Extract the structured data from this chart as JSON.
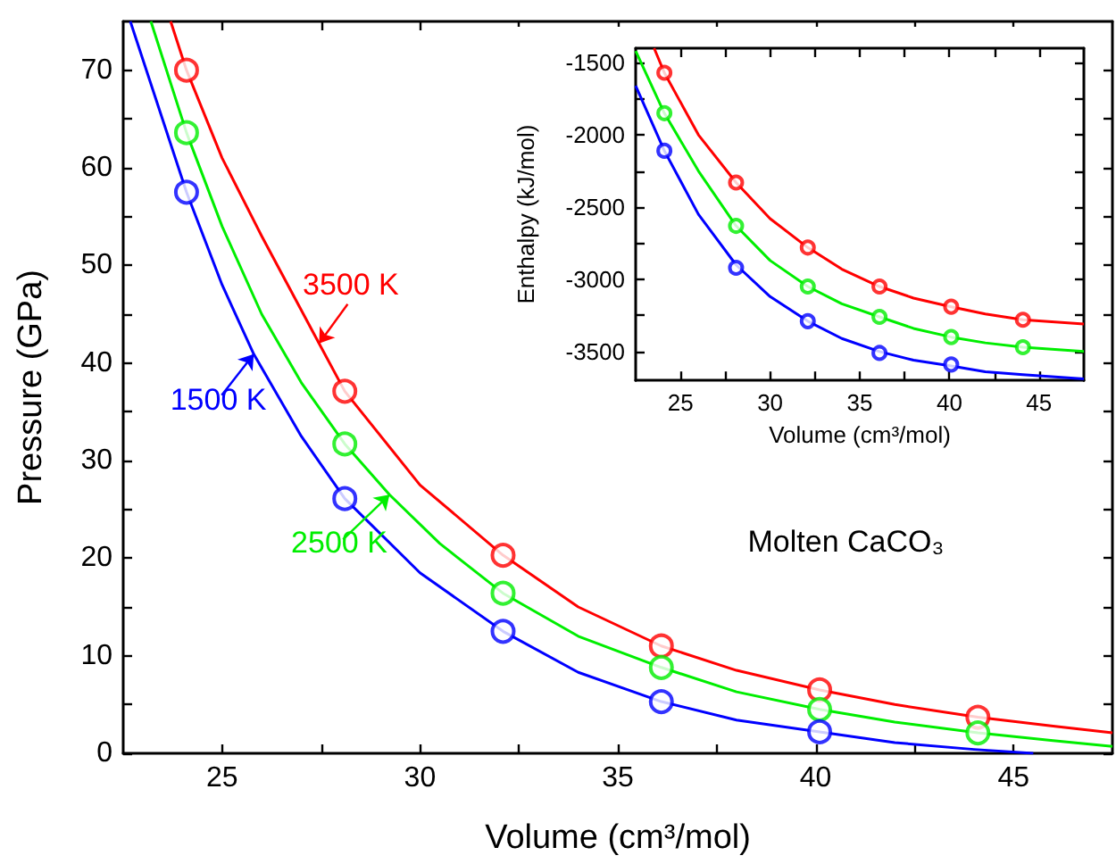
{
  "chart_data": [
    {
      "type": "scatter",
      "xlabel": "Volume (cm³/mol)",
      "ylabel": "Pressure (GPa)",
      "xlim": [
        22.5,
        47.5
      ],
      "ylim": [
        0,
        75
      ],
      "xticks": [
        25,
        {
          "value": 27.5,
          "label": null
        },
        30,
        {
          "value": 32.5,
          "label": null
        },
        35,
        {
          "value": 37.5,
          "label": null
        },
        40,
        {
          "value": 42.5,
          "label": null
        },
        45
      ],
      "yticks": [
        0,
        {
          "value": 5,
          "label": null
        },
        10,
        {
          "value": 15,
          "label": null
        },
        20,
        {
          "value": 25,
          "label": null
        },
        30,
        {
          "value": 35,
          "label": null
        },
        40,
        {
          "value": 45,
          "label": null
        },
        50,
        {
          "value": 55,
          "label": null
        },
        60,
        {
          "value": 65,
          "label": null
        },
        70
      ],
      "marker": "circle",
      "grid": false,
      "series": [
        {
          "color": "#ff0000",
          "x": [
            24.1,
            28.1,
            32.1,
            36.1,
            40.1,
            44.1
          ],
          "values": [
            70,
            37.1,
            20.3,
            11.0,
            6.5,
            3.7
          ]
        },
        {
          "color": "#00ee00",
          "x": [
            24.1,
            28.1,
            32.1,
            36.1,
            40.1,
            44.1
          ],
          "values": [
            63.6,
            31.7,
            16.4,
            8.8,
            4.5,
            2.1
          ]
        },
        {
          "color": "#0000ff",
          "x": [
            24.1,
            28.1,
            32.1,
            36.1,
            40.1
          ],
          "values": [
            57.5,
            26.1,
            12.5,
            5.3,
            2.2
          ]
        },
        {
          "type": "line",
          "marker": "none",
          "color": "#ff0000",
          "x": [
            23.7,
            24.1,
            25,
            26,
            27.45,
            28.1,
            30,
            32.1,
            34,
            36.1,
            38,
            40.1,
            42,
            44.1,
            46,
            47.5
          ],
          "values": [
            75,
            70,
            61,
            53,
            42,
            37.1,
            27.5,
            20.3,
            15,
            11,
            8.5,
            6.5,
            5,
            3.7,
            2.8,
            2.1
          ]
        },
        {
          "type": "line",
          "marker": "none",
          "color": "#00ee00",
          "x": [
            23.2,
            24.1,
            25,
            26,
            27,
            28.1,
            29.23,
            30.5,
            32.1,
            34,
            36.1,
            38,
            40.1,
            42,
            44.1,
            46,
            47.5
          ],
          "values": [
            75,
            63.6,
            54,
            45,
            38,
            31.7,
            26.5,
            21.5,
            16.4,
            12,
            8.8,
            6.3,
            4.5,
            3.2,
            2.1,
            1.3,
            0.7
          ]
        },
        {
          "type": "line",
          "marker": "none",
          "color": "#0000ff",
          "x": [
            22.68,
            24.1,
            25,
            25.8,
            27,
            28.1,
            30,
            32.1,
            34,
            36.1,
            38,
            40.1,
            42,
            44,
            45.5
          ],
          "values": [
            75,
            57.5,
            48,
            40.9,
            32.5,
            26.1,
            18.5,
            12.5,
            8.3,
            5.3,
            3.4,
            2.2,
            1.1,
            0.4,
            0
          ]
        }
      ],
      "annotations": [
        {
          "text": "3500 K",
          "x": 27.45,
          "y": 42
        },
        {
          "text": "2500 K",
          "x": 29.23,
          "y": 26.5
        },
        {
          "text": "1500 K",
          "x": 25.8,
          "y": 40.9
        },
        "Molten CaCO₃"
      ]
    },
    {
      "type": "scatter",
      "xlabel": "Volume (cm³/mol)",
      "ylabel": "Enthalpy (kJ/mol)",
      "xlim": [
        22.5,
        47.5
      ],
      "ylim": [
        -3700,
        -1400
      ],
      "xticks": [
        25,
        {
          "value": 27.5,
          "label": null
        },
        30,
        {
          "value": 32.5,
          "label": null
        },
        35,
        {
          "value": 37.5,
          "label": null
        },
        40,
        {
          "value": 42.5,
          "label": null
        },
        45
      ],
      "yticks": [
        -3500,
        {
          "value": -3250,
          "label": null
        },
        -3000,
        {
          "value": -2750,
          "label": null
        },
        -2500,
        {
          "value": -2250,
          "label": null
        },
        -2000,
        {
          "value": -1750,
          "label": null
        },
        -1500
      ],
      "marker": "circle",
      "grid": false,
      "series": [
        {
          "color": "#ff0000",
          "x": [
            24.1,
            28.1,
            32.1,
            36.1,
            40.1,
            44.1
          ],
          "values": [
            -1570,
            -2330,
            -2780,
            -3050,
            -3190,
            -3280
          ]
        },
        {
          "color": "#00ee00",
          "x": [
            24.1,
            28.1,
            32.1,
            36.1,
            40.1,
            44.1
          ],
          "values": [
            -1850,
            -2630,
            -3050,
            -3260,
            -3400,
            -3470
          ]
        },
        {
          "color": "#0000ff",
          "x": [
            24.1,
            28.1,
            32.1,
            36.1,
            40.1
          ],
          "values": [
            -2110,
            -2920,
            -3290,
            -3510,
            -3590
          ]
        },
        {
          "type": "line",
          "marker": "none",
          "color": "#ff0000",
          "x": [
            23.53,
            24.1,
            26,
            28.1,
            30,
            32.1,
            34,
            36.1,
            38,
            40.1,
            42,
            44.1,
            47.5
          ],
          "values": [
            -1400,
            -1570,
            -2000,
            -2330,
            -2580,
            -2780,
            -2930,
            -3050,
            -3130,
            -3190,
            -3240,
            -3280,
            -3310
          ]
        },
        {
          "type": "line",
          "marker": "none",
          "color": "#00ee00",
          "x": [
            22.5,
            24.1,
            26,
            28.1,
            30,
            32.1,
            34,
            36.1,
            38,
            40.1,
            42,
            44.1,
            47.5
          ],
          "values": [
            -1420,
            -1850,
            -2250,
            -2630,
            -2870,
            -3050,
            -3170,
            -3260,
            -3340,
            -3400,
            -3440,
            -3470,
            -3500
          ]
        },
        {
          "type": "line",
          "marker": "none",
          "color": "#0000ff",
          "x": [
            22.5,
            24.1,
            26,
            28.1,
            30,
            32.1,
            34,
            36.1,
            38,
            40.1,
            42,
            44.1,
            47.5
          ],
          "values": [
            -1660,
            -2110,
            -2550,
            -2900,
            -3120,
            -3290,
            -3410,
            -3500,
            -3560,
            -3600,
            -3640,
            -3660,
            -3690
          ]
        }
      ]
    }
  ]
}
